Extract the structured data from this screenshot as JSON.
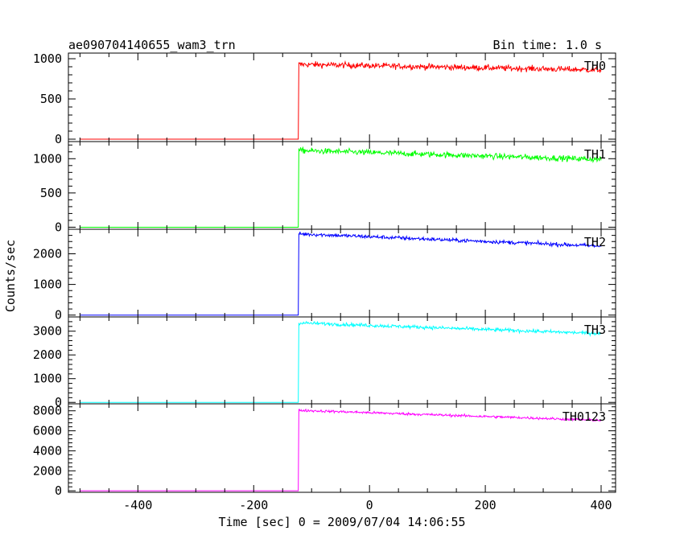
{
  "chart_data": {
    "type": "line",
    "title": "ae090704140655_wam3_trn",
    "subtitle": "Bin time: 1.0 s",
    "xlabel": "Time [sec] 0 = 2009/07/04 14:06:55",
    "ylabel": "Counts/sec",
    "xlim": [
      -520,
      425
    ],
    "x_ticks": [
      -400,
      -200,
      0,
      200,
      400
    ],
    "grid": false,
    "trigger_time": -122,
    "bin_time": 1.0,
    "panels": [
      {
        "name": "TH0",
        "color": "#ff0000",
        "ylim": [
          -30,
          1070
        ],
        "y_ticks": [
          0,
          500,
          1000
        ],
        "pre_level": 0,
        "post_start": 930,
        "post_end": 860,
        "noise": 35
      },
      {
        "name": "TH1",
        "color": "#00ff00",
        "ylim": [
          -30,
          1250
        ],
        "y_ticks": [
          0,
          500,
          1000
        ],
        "pre_level": 0,
        "post_start": 1120,
        "post_end": 990,
        "noise": 40
      },
      {
        "name": "TH2",
        "color": "#0000ff",
        "ylim": [
          -60,
          2800
        ],
        "y_ticks": [
          0,
          1000,
          2000
        ],
        "pre_level": 0,
        "post_start": 2650,
        "post_end": 2250,
        "noise": 60
      },
      {
        "name": "TH3",
        "color": "#00ffff",
        "ylim": [
          -60,
          3600
        ],
        "y_ticks": [
          0,
          1000,
          2000,
          3000
        ],
        "pre_level": 0,
        "post_start": 3350,
        "post_end": 2900,
        "noise": 70
      },
      {
        "name": "TH0123",
        "color": "#ff00ff",
        "ylim": [
          -150,
          8700
        ],
        "y_ticks": [
          0,
          2000,
          4000,
          6000,
          8000
        ],
        "pre_level": 0,
        "post_start": 8050,
        "post_end": 7050,
        "noise": 120
      }
    ]
  }
}
